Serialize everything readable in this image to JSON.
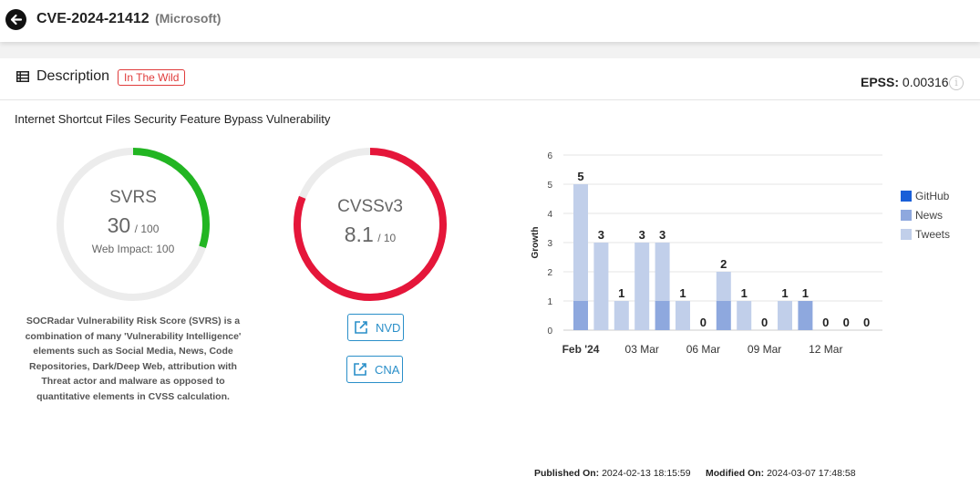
{
  "header": {
    "cve_id": "CVE-2024-21412",
    "vendor": "(Microsoft)"
  },
  "description": {
    "label": "Description",
    "badge": "In The Wild",
    "epss_label": "EPSS:",
    "epss_value": "0.00316",
    "vuln_title": "Internet Shortcut Files Security Feature Bypass Vulnerability"
  },
  "svrs": {
    "label": "SVRS",
    "score": "30",
    "max": "/ 100",
    "web_impact": "Web Impact: 100",
    "fraction": 0.3,
    "color": "#22b522",
    "description": "SOCRadar Vulnerability Risk Score (SVRS) is a combination of many 'Vulnerability Intelligence' elements such as Social Media, News, Code Repositories, Dark/Deep Web, attribution with Threat actor and malware as opposed to quantitative elements in CVSS calculation."
  },
  "cvss": {
    "label": "CVSSv3",
    "score": "8.1",
    "max": "/ 10",
    "fraction": 0.81,
    "color": "#e5163a"
  },
  "links": {
    "nvd": "NVD",
    "cna": "CNA"
  },
  "footer": {
    "published_label": "Published On:",
    "published_value": "2024-02-13 18:15:59",
    "modified_label": "Modified On:",
    "modified_value": "2024-03-07 17:48:58"
  },
  "chart_data": {
    "type": "bar",
    "stacked": true,
    "ylabel": "Growth",
    "ylim": [
      0,
      6
    ],
    "yticks": [
      "0",
      "1",
      "2",
      "3",
      "4",
      "5",
      "6"
    ],
    "xtick_labels": [
      "Feb '24",
      "03 Mar",
      "06 Mar",
      "09 Mar",
      "12 Mar"
    ],
    "xtick_positions": [
      0,
      3,
      6,
      9,
      12
    ],
    "grid": true,
    "legend_position": "right",
    "totals": [
      5,
      3,
      1,
      3,
      3,
      1,
      0,
      2,
      1,
      0,
      1,
      1,
      0,
      0,
      0
    ],
    "series": [
      {
        "name": "GitHub",
        "color": "#1a5fd8",
        "values": [
          0,
          0,
          0,
          0,
          0,
          0,
          0,
          0,
          0,
          0,
          0,
          0,
          0,
          0,
          0
        ]
      },
      {
        "name": "News",
        "color": "#8ea8de",
        "values": [
          1,
          0,
          0,
          0,
          1,
          0,
          0,
          1,
          0,
          0,
          0,
          1,
          0,
          0,
          0
        ]
      },
      {
        "name": "Tweets",
        "color": "#c1cfea",
        "values": [
          4,
          3,
          1,
          3,
          2,
          1,
          0,
          1,
          1,
          0,
          1,
          0,
          0,
          0,
          0
        ]
      }
    ]
  }
}
